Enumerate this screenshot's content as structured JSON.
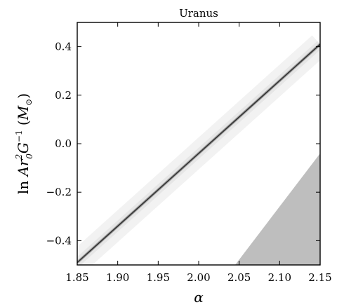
{
  "chart_data": {
    "type": "heatmap",
    "title": "Uranus",
    "xlabel": "α",
    "ylabel": {
      "prefix": "ln ",
      "var_a": "A",
      "var_r": "r",
      "sup_2": "2",
      "sub_0": "0",
      "var_g": "G",
      "sup_neg1": "−1",
      "unit_open": " (",
      "unit_m": "M",
      "unit_sun": "⊙",
      "unit_close": ")"
    },
    "xlim": [
      1.85,
      2.15
    ],
    "ylim": [
      -0.5,
      0.5
    ],
    "x_ticks": [
      1.85,
      1.9,
      1.95,
      2.0,
      2.05,
      2.1,
      2.15
    ],
    "x_tick_labels": [
      "1.85",
      "1.90",
      "1.95",
      "2.00",
      "2.05",
      "2.10",
      "2.15"
    ],
    "y_ticks": [
      -0.4,
      -0.2,
      0.0,
      0.2,
      0.4
    ],
    "y_tick_labels": [
      "−0.4",
      "−0.2",
      "0.0",
      "0.2",
      "0.4"
    ],
    "ridge_line": {
      "x": [
        1.85,
        2.15
      ],
      "y": [
        -0.49,
        0.41
      ]
    },
    "excluded_region": {
      "x": [
        2.045,
        2.15,
        2.15
      ],
      "y": [
        -0.5,
        -0.5,
        -0.04
      ],
      "color": "#bebebe"
    },
    "colormap": "gray_r",
    "grid": false,
    "colors": {
      "ridge": "#333333",
      "glow": "#e6e6e6",
      "excluded": "#bebebe"
    }
  }
}
